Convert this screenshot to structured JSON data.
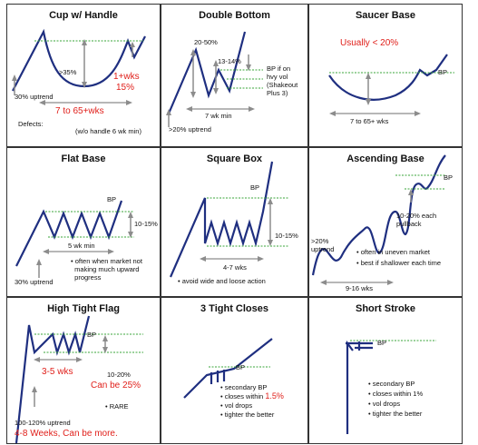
{
  "colors": {
    "line": "#1f2f80",
    "green": "#3aa63a",
    "arrow": "#8c8c8c",
    "red": "#e0201b"
  },
  "cells": {
    "cup": {
      "title": "Cup w/ Handle",
      "depth": ">35%",
      "handle_time": "1+wks",
      "handle_depth": "15%",
      "uptrend": "30% uptrend",
      "duration": "7 to 65+wks",
      "defects": "Defects:",
      "defects_note": "(w/o handle 6 wk min)"
    },
    "double_bottom": {
      "title": "Double Bottom",
      "depth": "20-50%",
      "second_drop": "13-14%",
      "bp_note": "BP if on\nhvy vol\n(Shakeout\nPlus 3)",
      "duration": "7 wk min",
      "uptrend": ">20% uptrend"
    },
    "saucer": {
      "title": "Saucer Base",
      "depth": "Usually < 20%",
      "bp": "BP",
      "duration": "7 to 65+ wks"
    },
    "flat": {
      "title": "Flat Base",
      "bp": "BP",
      "depth": "10-15%",
      "duration": "5 wk min",
      "uptrend": "30% uptrend",
      "note": "• often when market not\n  making much upward\n  progress"
    },
    "square": {
      "title": "Square Box",
      "bp": "BP",
      "depth": "10-15%",
      "duration": "4-7 wks",
      "note": "• avoid wide and loose action"
    },
    "ascending": {
      "title": "Ascending Base",
      "bp": "BP",
      "pullback": "10-20% each\npullback",
      "uptrend": ">20%\nuptrend",
      "note1": "• often in uneven market",
      "note2": "• best if shallower each time",
      "duration": "9-16 wks"
    },
    "htf": {
      "title": "High Tight Flag",
      "bp": "BP",
      "duration": "3-5 wks",
      "depth": "10-20%",
      "depth_alt": "Can be 25%",
      "rare": "• RARE",
      "uptrend": "100-120% uptrend",
      "uptrend_alt": "4-8 Weeks, Can be more."
    },
    "tight": {
      "title": "3 Tight Closes",
      "bp": "BP",
      "note1": "• secondary BP",
      "note2a": "• closes within ",
      "note2b": "1.5%",
      "note3": "• vol drops",
      "note4": "• tighter the better"
    },
    "short": {
      "title": "Short Stroke",
      "bp": "BP",
      "note1": "• secondary BP",
      "note2": "• closes within 1%",
      "note3": "• vol drops",
      "note4": "• tighter the better"
    }
  }
}
